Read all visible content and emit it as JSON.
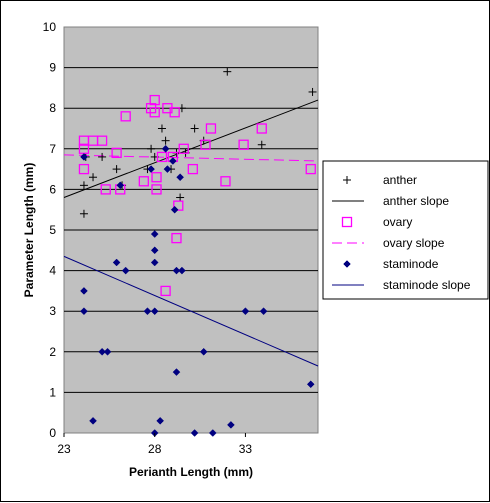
{
  "chart_data": {
    "type": "scatter",
    "title": "",
    "xlabel": "Perianth Length (mm)",
    "ylabel": "Parameter Length (mm)",
    "xlim": [
      23,
      37
    ],
    "ylim": [
      0,
      10
    ],
    "x_ticks": [
      23,
      28,
      33
    ],
    "y_ticks": [
      0,
      1,
      2,
      3,
      4,
      5,
      6,
      7,
      8,
      9,
      10
    ],
    "grid": "horizontal",
    "legend_position": "right",
    "background_color": "#c0c0c0",
    "series": [
      {
        "name": "anther",
        "kind": "points",
        "marker": "plus",
        "color": "#000000",
        "points": [
          [
            24.1,
            6.1
          ],
          [
            24.1,
            5.4
          ],
          [
            24.6,
            6.3
          ],
          [
            24.2,
            6.8
          ],
          [
            25.1,
            6.8
          ],
          [
            25.9,
            6.5
          ],
          [
            26.2,
            6.1
          ],
          [
            27.6,
            6.5
          ],
          [
            27.8,
            7.0
          ],
          [
            28.0,
            6.8
          ],
          [
            28.4,
            7.5
          ],
          [
            28.6,
            7.2
          ],
          [
            28.9,
            6.5
          ],
          [
            29.2,
            6.9
          ],
          [
            29.4,
            5.8
          ],
          [
            29.5,
            8.0
          ],
          [
            29.7,
            6.9
          ],
          [
            30.2,
            7.5
          ],
          [
            30.7,
            7.2
          ],
          [
            32.0,
            8.9
          ],
          [
            33.9,
            7.1
          ],
          [
            36.7,
            8.4
          ]
        ]
      },
      {
        "name": "anther slope",
        "kind": "line",
        "dash": "solid",
        "color": "#000000",
        "x": [
          23,
          37
        ],
        "y": [
          5.8,
          8.2
        ]
      },
      {
        "name": "ovary",
        "kind": "points",
        "marker": "open-square",
        "color": "#ff00ff",
        "points": [
          [
            24.1,
            7.2
          ],
          [
            24.1,
            7.0
          ],
          [
            24.1,
            6.5
          ],
          [
            24.6,
            7.2
          ],
          [
            25.1,
            7.2
          ],
          [
            25.3,
            6.0
          ],
          [
            25.9,
            6.9
          ],
          [
            26.1,
            6.0
          ],
          [
            26.4,
            7.8
          ],
          [
            27.4,
            6.2
          ],
          [
            27.8,
            8.0
          ],
          [
            28.0,
            8.2
          ],
          [
            28.0,
            7.9
          ],
          [
            28.1,
            6.0
          ],
          [
            28.1,
            6.3
          ],
          [
            28.4,
            6.8
          ],
          [
            28.7,
            8.0
          ],
          [
            28.6,
            3.5
          ],
          [
            29.1,
            7.9
          ],
          [
            29.0,
            6.8
          ],
          [
            29.3,
            5.6
          ],
          [
            29.2,
            4.8
          ],
          [
            29.6,
            7.0
          ],
          [
            30.1,
            6.5
          ],
          [
            30.8,
            7.1
          ],
          [
            31.1,
            7.5
          ],
          [
            31.9,
            6.2
          ],
          [
            32.9,
            7.1
          ],
          [
            33.9,
            7.5
          ],
          [
            36.6,
            6.5
          ]
        ]
      },
      {
        "name": "ovary slope",
        "kind": "line",
        "dash": "dashed",
        "color": "#ff00ff",
        "x": [
          23,
          37
        ],
        "y": [
          6.85,
          6.7
        ]
      },
      {
        "name": "staminode",
        "kind": "points",
        "marker": "filled-diamond",
        "color": "#000080",
        "points": [
          [
            24.1,
            6.8
          ],
          [
            24.1,
            3.5
          ],
          [
            24.1,
            3.0
          ],
          [
            24.6,
            0.3
          ],
          [
            25.1,
            2.0
          ],
          [
            25.4,
            2.0
          ],
          [
            25.9,
            4.2
          ],
          [
            26.1,
            6.1
          ],
          [
            26.4,
            4.0
          ],
          [
            27.8,
            6.5
          ],
          [
            27.6,
            3.0
          ],
          [
            28.0,
            4.9
          ],
          [
            28.0,
            4.5
          ],
          [
            28.0,
            4.2
          ],
          [
            28.0,
            0.0
          ],
          [
            28.0,
            3.0
          ],
          [
            28.3,
            0.3
          ],
          [
            28.6,
            7.0
          ],
          [
            28.7,
            6.5
          ],
          [
            29.0,
            6.7
          ],
          [
            29.1,
            5.5
          ],
          [
            29.2,
            4.0
          ],
          [
            29.2,
            1.5
          ],
          [
            29.4,
            6.3
          ],
          [
            29.5,
            4.0
          ],
          [
            30.2,
            0.0
          ],
          [
            30.7,
            2.0
          ],
          [
            31.2,
            0.0
          ],
          [
            32.2,
            0.2
          ],
          [
            33.0,
            3.0
          ],
          [
            34.0,
            3.0
          ],
          [
            36.6,
            1.2
          ]
        ]
      },
      {
        "name": "staminode slope",
        "kind": "line",
        "dash": "solid",
        "color": "#000080",
        "x": [
          23,
          37
        ],
        "y": [
          4.35,
          1.65
        ]
      }
    ]
  }
}
